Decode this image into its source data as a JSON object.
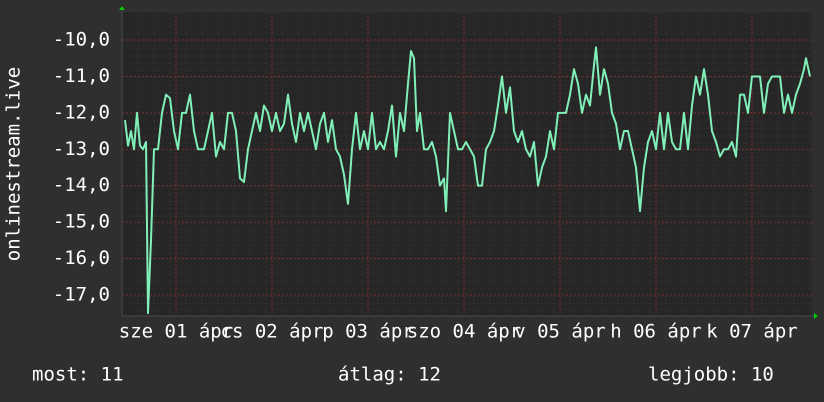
{
  "chart_data": {
    "type": "line",
    "ylabel": "onlinestream.live",
    "x": [
      -0.75,
      0,
      0.75,
      1.5,
      2.25,
      3,
      3.75,
      4.5,
      5,
      5.75,
      6.5,
      7.5,
      8.5,
      9.5,
      10.5,
      11.5,
      12.5,
      13.5,
      14.5,
      15.5,
      16.5,
      17.5,
      19,
      20,
      21,
      22,
      23,
      24,
      25,
      26,
      27,
      28,
      29,
      30,
      31,
      32,
      33,
      34,
      35,
      36,
      37,
      38,
      39,
      40,
      41,
      42,
      43,
      44,
      45,
      46,
      47,
      48,
      49,
      50,
      51,
      52,
      53,
      54,
      55,
      56,
      57,
      58,
      59,
      60,
      61,
      62,
      63,
      64,
      65,
      66,
      67,
      68,
      69,
      70,
      70.75,
      71.5,
      72.25,
      73,
      74,
      75,
      76,
      77,
      78,
      79,
      79.5,
      80.5,
      81.5,
      82.5,
      83.5,
      84.5,
      85.5,
      86.5,
      87.5,
      88.5,
      89.5,
      90.5,
      91.5,
      92.5,
      93.5,
      94.5,
      95.5,
      96.5,
      97.5,
      98.5,
      99.5,
      100.5,
      101.5,
      102.5,
      103.5,
      104.5,
      105.5,
      106.5,
      107.5,
      108.5,
      109.5,
      110.5,
      111.5,
      112.5,
      113.5,
      114.5,
      115.5,
      116.5,
      117,
      118,
      119,
      120,
      121,
      122,
      123,
      124,
      125,
      126,
      127,
      128,
      129,
      130,
      131,
      132,
      133,
      134,
      135,
      136,
      137,
      138,
      139,
      140,
      141,
      142,
      143,
      144,
      145,
      146,
      147,
      148,
      149,
      150,
      151,
      152,
      153,
      154,
      155,
      156,
      157,
      158,
      159,
      160,
      161,
      162,
      163,
      164,
      165,
      166,
      167,
      168,
      169,
      169.5,
      170.5
    ],
    "series": [
      {
        "color": "#80f0b8",
        "values": [
          -12.2,
          -12.9,
          -12.5,
          -13.0,
          -12.0,
          -12.9,
          -13.0,
          -12.8,
          -17.5,
          -15.5,
          -13.0,
          -13.0,
          -12.0,
          -11.5,
          -11.6,
          -12.5,
          -13.0,
          -12.0,
          -12.0,
          -11.5,
          -12.5,
          -13.0,
          -13.0,
          -12.5,
          -12.0,
          -13.2,
          -12.8,
          -13.0,
          -12.0,
          -12.0,
          -12.5,
          -13.8,
          -13.9,
          -13.0,
          -12.5,
          -12.0,
          -12.5,
          -11.8,
          -12.0,
          -12.5,
          -12.0,
          -12.5,
          -12.3,
          -11.5,
          -12.3,
          -12.8,
          -12.0,
          -12.5,
          -12.0,
          -12.5,
          -13.0,
          -12.3,
          -12.0,
          -12.8,
          -12.2,
          -13.0,
          -13.2,
          -13.7,
          -14.5,
          -13.0,
          -12.0,
          -13.0,
          -12.5,
          -13.0,
          -12.0,
          -13.0,
          -12.8,
          -13.0,
          -12.5,
          -11.8,
          -13.2,
          -12.0,
          -12.5,
          -11.2,
          -10.3,
          -10.5,
          -12.5,
          -12.0,
          -13.0,
          -13.0,
          -12.8,
          -13.2,
          -14.0,
          -13.8,
          -14.7,
          -12.0,
          -12.5,
          -13.0,
          -13.0,
          -12.8,
          -13.0,
          -13.2,
          -14.0,
          -14.0,
          -13.0,
          -12.8,
          -12.5,
          -11.8,
          -11.0,
          -12.0,
          -11.3,
          -12.5,
          -12.8,
          -12.5,
          -13.0,
          -13.2,
          -12.8,
          -14.0,
          -13.5,
          -13.2,
          -12.5,
          -13.0,
          -12.0,
          -12.0,
          -12.0,
          -11.5,
          -10.8,
          -11.2,
          -12.0,
          -11.5,
          -11.8,
          -10.7,
          -10.2,
          -11.5,
          -10.8,
          -11.2,
          -12.0,
          -12.3,
          -13.0,
          -12.5,
          -12.5,
          -13.0,
          -13.5,
          -14.7,
          -13.5,
          -12.8,
          -12.5,
          -13.0,
          -12.0,
          -13.0,
          -12.0,
          -12.8,
          -13.0,
          -13.0,
          -12.0,
          -13.0,
          -11.8,
          -11.0,
          -11.5,
          -10.8,
          -11.5,
          -12.5,
          -12.8,
          -13.2,
          -13.0,
          -13.0,
          -12.8,
          -13.2,
          -11.5,
          -11.5,
          -12.0,
          -11.0,
          -11.0,
          -11.0,
          -12.0,
          -11.2,
          -11.0,
          -11.0,
          -11.0,
          -12.0,
          -11.5,
          -12.0,
          -11.5,
          -11.2,
          -10.8,
          -10.5,
          -11.0
        ]
      }
    ],
    "xlim": [
      -1.5,
      171
    ],
    "xticks": [
      {
        "value": 12,
        "label": "sze 01 ápr"
      },
      {
        "value": 36,
        "label": "cs 02 ápr"
      },
      {
        "value": 60,
        "label": "p 03 ápr"
      },
      {
        "value": 84,
        "label": "szo 04 ápr"
      },
      {
        "value": 108,
        "label": "v 05 ápr"
      },
      {
        "value": 132,
        "label": "h 06 ápr"
      },
      {
        "value": 156,
        "label": "k 07 ápr"
      }
    ],
    "ylim": [
      -17.58,
      -9.23
    ],
    "yticks": [
      {
        "value": -10,
        "label": "-10,0"
      },
      {
        "value": -11,
        "label": "-11,0"
      },
      {
        "value": -12,
        "label": "-12,0"
      },
      {
        "value": -13,
        "label": "-13,0"
      },
      {
        "value": -14,
        "label": "-14,0"
      },
      {
        "value": -15,
        "label": "-15,0"
      },
      {
        "value": -16,
        "label": "-16,0"
      },
      {
        "value": -17,
        "label": "-17,0"
      }
    ],
    "grid": true,
    "footer": [
      "most: 11",
      "átlag: 12",
      "legjobb: 10"
    ]
  }
}
